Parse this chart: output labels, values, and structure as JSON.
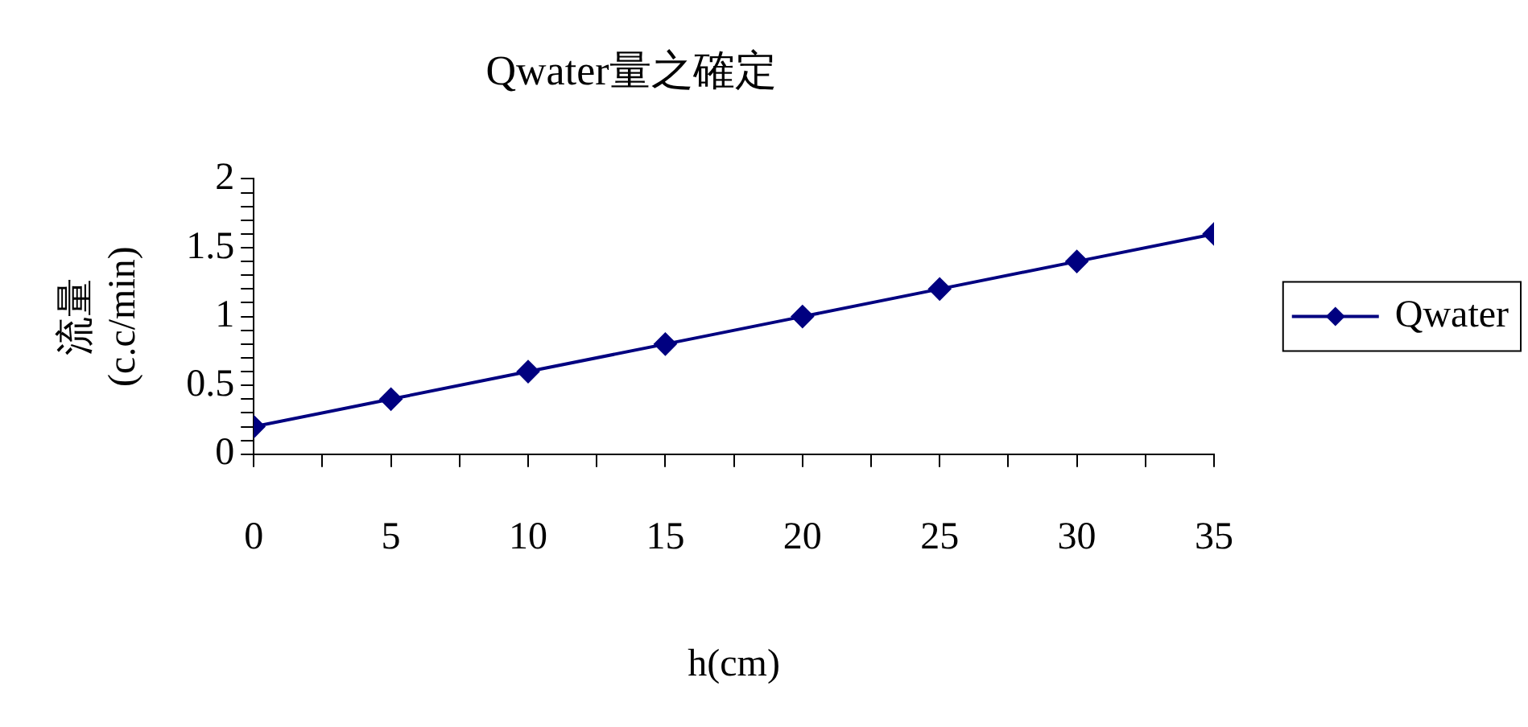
{
  "chart_data": {
    "type": "line",
    "title": "Qwater量之確定",
    "xlabel": "h(cm)",
    "ylabel": "流量\n(c.c/min)",
    "x": [
      0,
      5,
      10,
      15,
      20,
      25,
      30,
      35
    ],
    "series": [
      {
        "name": "Qwater",
        "color": "#000080",
        "values": [
          0.2,
          0.4,
          0.6,
          0.8,
          1.0,
          1.2,
          1.4,
          1.6
        ]
      }
    ],
    "xlim": [
      0,
      35
    ],
    "xticks": [
      0,
      {
        "value": 2.5,
        "label": null
      },
      5,
      {
        "value": 7.5,
        "label": null
      },
      10,
      {
        "value": 12.5,
        "label": null
      },
      15,
      {
        "value": 17.5,
        "label": null
      },
      20,
      {
        "value": 22.5,
        "label": null
      },
      25,
      {
        "value": 27.5,
        "label": null
      },
      30,
      {
        "value": 32.5,
        "label": null
      },
      35
    ],
    "ylim": [
      0,
      2
    ],
    "yticks": [
      0,
      {
        "value": 0.1,
        "label": null
      },
      {
        "value": 0.2,
        "label": null
      },
      {
        "value": 0.3,
        "label": null
      },
      {
        "value": 0.4,
        "label": null
      },
      0.5,
      {
        "value": 0.6,
        "label": null
      },
      {
        "value": 0.7,
        "label": null
      },
      {
        "value": 0.8,
        "label": null
      },
      {
        "value": 0.9,
        "label": null
      },
      1,
      {
        "value": 1.1,
        "label": null
      },
      {
        "value": 1.2,
        "label": null
      },
      {
        "value": 1.3,
        "label": null
      },
      {
        "value": 1.4,
        "label": null
      },
      1.5,
      {
        "value": 1.6,
        "label": null
      },
      {
        "value": 1.7,
        "label": null
      },
      {
        "value": 1.8,
        "label": null
      },
      {
        "value": 1.9,
        "label": null
      },
      2
    ],
    "grid": false,
    "legend": "right",
    "marker": "diamond",
    "line_style": "solid"
  }
}
